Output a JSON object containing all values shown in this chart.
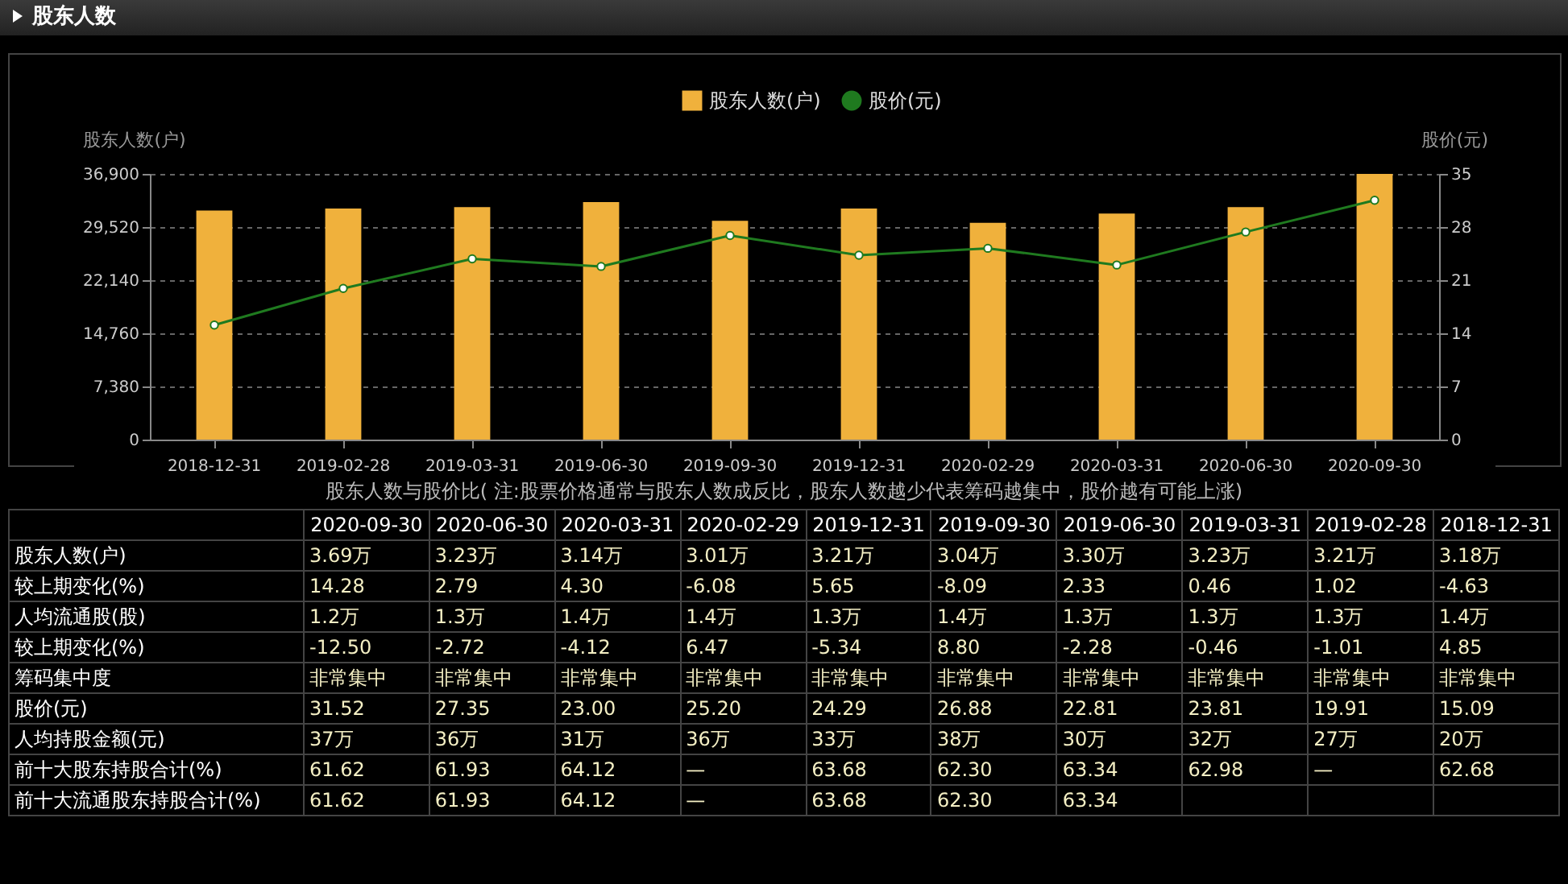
{
  "chart_data": [
    {
      "type": "bar",
      "title": "股东人数",
      "categories": [
        "2018-12-31",
        "2019-02-28",
        "2019-03-31",
        "2019-06-30",
        "2019-09-30",
        "2019-12-31",
        "2020-02-29",
        "2020-03-31",
        "2020-06-30",
        "2020-09-30"
      ],
      "series": [
        {
          "name": "股东人数(户)",
          "type": "bar",
          "color": "#f0b13c",
          "values": [
            31800,
            32100,
            32300,
            33000,
            30400,
            32100,
            30100,
            31400,
            32300,
            36900
          ]
        },
        {
          "name": "股价(元)",
          "type": "line",
          "axis": "y2",
          "color": "#1f7a1f",
          "values": [
            15.09,
            19.91,
            23.81,
            22.81,
            26.88,
            24.29,
            25.2,
            23.0,
            27.35,
            31.52
          ]
        }
      ],
      "ylabel": "股东人数(户)",
      "y2label": "股价(元)",
      "ylim": [
        0,
        36900
      ],
      "yticks": [
        0,
        {
          "value": 7380,
          "label": "7,380"
        },
        {
          "value": 14760,
          "label": "14,760"
        },
        {
          "value": 22140,
          "label": "22,140"
        },
        {
          "value": 29520,
          "label": "29,520"
        },
        {
          "value": 36900,
          "label": "36,900"
        }
      ],
      "y2lim": [
        0,
        35
      ],
      "y2ticks": [
        0,
        7,
        14,
        21,
        28,
        35
      ],
      "grid": "y",
      "legend": "top",
      "marker": "circle",
      "line_style": "solid"
    },
    {
      "type": "other",
      "title": "股东人数与股价比( 注:股票价格通常与股东人数成反比，股东人数越少代表筹码越集中，股价越有可能上涨)",
      "categories": [
        "2020-09-30",
        "2020-06-30",
        "2020-03-31",
        "2020-02-29",
        "2019-12-31",
        "2019-09-30",
        "2019-06-30",
        "2019-03-31",
        "2019-02-28",
        "2018-12-31"
      ],
      "series": [
        {
          "name": "股东人数(户)",
          "values": [
            3.69,
            3.23,
            3.14,
            3.01,
            3.21,
            3.04,
            3.3,
            3.23,
            3.21,
            3.18
          ],
          "value_labels": [
            "3.69万",
            "3.23万",
            "3.14万",
            "3.01万",
            "3.21万",
            "3.04万",
            "3.30万",
            "3.23万",
            "3.21万",
            "3.18万"
          ]
        },
        {
          "name": "较上期变化(%)",
          "values": [
            14.28,
            2.79,
            4.3,
            -6.08,
            5.65,
            -8.09,
            2.33,
            0.46,
            1.02,
            -4.63
          ],
          "value_labels": [
            "14.28",
            "2.79",
            "4.30",
            "-6.08",
            "5.65",
            "-8.09",
            "2.33",
            "0.46",
            "1.02",
            "-4.63"
          ]
        },
        {
          "name": "人均流通股(股)",
          "values": [
            1.2,
            1.3,
            1.4,
            1.4,
            1.3,
            1.4,
            1.3,
            1.3,
            1.3,
            1.4
          ],
          "value_labels": [
            "1.2万",
            "1.3万",
            "1.4万",
            "1.4万",
            "1.3万",
            "1.4万",
            "1.3万",
            "1.3万",
            "1.3万",
            "1.4万"
          ]
        },
        {
          "name": "较上期变化(%)",
          "values": [
            -12.5,
            -2.72,
            -4.12,
            6.47,
            -5.34,
            8.8,
            -2.28,
            -0.46,
            -1.01,
            4.85
          ],
          "value_labels": [
            "-12.50",
            "-2.72",
            "-4.12",
            "6.47",
            "-5.34",
            "8.80",
            "-2.28",
            "-0.46",
            "-1.01",
            "4.85"
          ]
        },
        {
          "name": "筹码集中度",
          "values": [
            null,
            null,
            null,
            null,
            null,
            null,
            null,
            null,
            null,
            null
          ],
          "value_labels": [
            "非常集中",
            "非常集中",
            "非常集中",
            "非常集中",
            "非常集中",
            "非常集中",
            "非常集中",
            "非常集中",
            "非常集中",
            "非常集中"
          ]
        },
        {
          "name": "股价(元)",
          "values": [
            31.52,
            27.35,
            23.0,
            25.2,
            24.29,
            26.88,
            22.81,
            23.81,
            19.91,
            15.09
          ],
          "value_labels": [
            "31.52",
            "27.35",
            "23.00",
            "25.20",
            "24.29",
            "26.88",
            "22.81",
            "23.81",
            "19.91",
            "15.09"
          ]
        },
        {
          "name": "人均持股金额(元)",
          "values": [
            37,
            36,
            31,
            36,
            33,
            38,
            30,
            32,
            27,
            20
          ],
          "value_labels": [
            "37万",
            "36万",
            "31万",
            "36万",
            "33万",
            "38万",
            "30万",
            "32万",
            "27万",
            "20万"
          ]
        },
        {
          "name": "前十大股东持股合计(%)",
          "values": [
            61.62,
            61.93,
            64.12,
            null,
            63.68,
            62.3,
            63.34,
            62.98,
            null,
            62.68
          ],
          "value_labels": [
            "61.62",
            "61.93",
            "64.12",
            "—",
            "63.68",
            "62.30",
            "63.34",
            "62.98",
            "—",
            "62.68"
          ]
        },
        {
          "name": "前十大流通股东持股合计(%)",
          "values": [
            61.62,
            61.93,
            64.12,
            null,
            63.68,
            62.3,
            63.34,
            null,
            null,
            null
          ],
          "value_labels": [
            "61.62",
            "61.93",
            "64.12",
            "—",
            "63.68",
            "62.30",
            "63.34",
            null,
            null,
            null
          ]
        }
      ]
    }
  ]
}
